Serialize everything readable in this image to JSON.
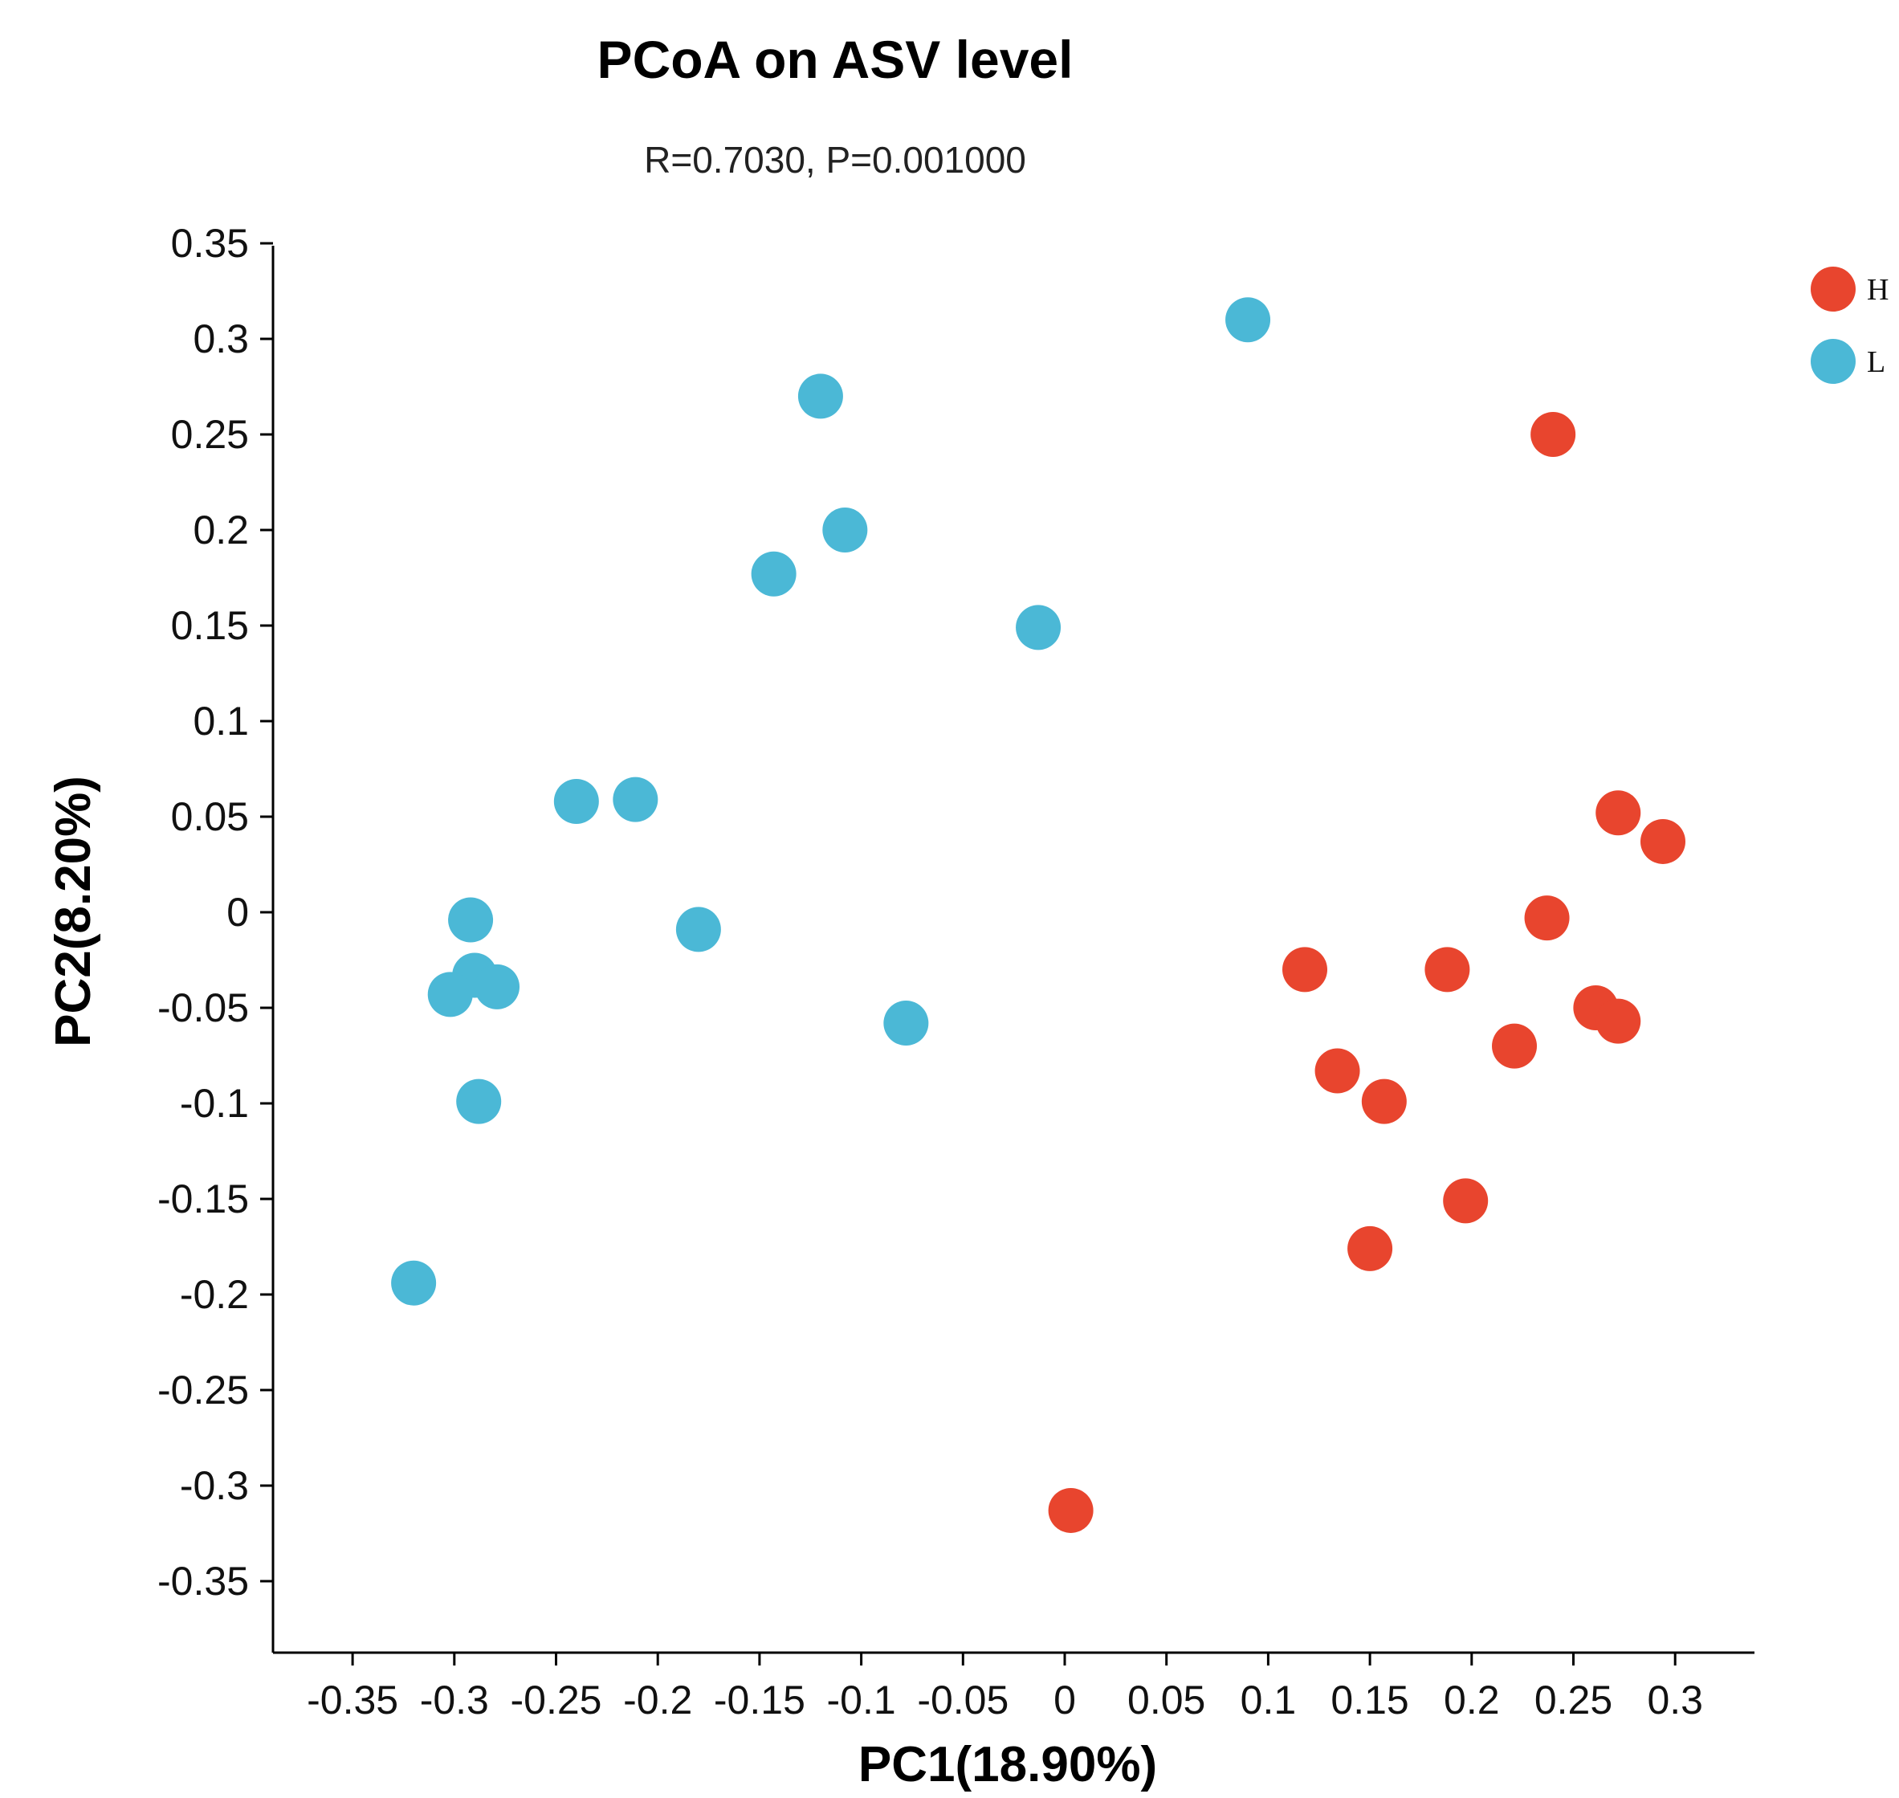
{
  "chart_data": {
    "type": "scatter",
    "title": "PCoA on ASV level",
    "subtitle": "R=0.7030, P=0.001000",
    "xlabel": "PC1(18.90%)",
    "ylabel": "PC2(8.20%)",
    "xlim": [
      -0.385,
      0.335
    ],
    "ylim": [
      -0.385,
      0.35
    ],
    "xticks": [
      -0.35,
      -0.3,
      -0.25,
      -0.2,
      -0.15,
      -0.1,
      -0.05,
      0,
      0.05,
      0.1,
      0.15,
      0.2,
      0.25,
      0.3
    ],
    "xtick_labels": [
      "-0.35",
      "-0.3",
      "-0.25",
      "-0.2",
      "-0.15",
      "-0.1",
      "-0.05",
      "0",
      "0.05",
      "0.1",
      "0.15",
      "0.2",
      "0.25",
      "0.3"
    ],
    "yticks": [
      0.35,
      0.3,
      0.25,
      0.2,
      0.15,
      0.1,
      0.05,
      0,
      -0.05,
      -0.1,
      -0.15,
      -0.2,
      -0.25,
      -0.3,
      -0.35
    ],
    "ytick_labels": [
      "0.35",
      "0.3",
      "0.25",
      "0.2",
      "0.15",
      "0.1",
      "0.05",
      "0",
      "-0.05",
      "-0.1",
      "-0.15",
      "-0.2",
      "-0.25",
      "-0.3",
      "-0.35"
    ],
    "legend_position": "top-right",
    "series": [
      {
        "name": "H",
        "color": "#e8452e",
        "points": [
          [
            0.24,
            0.25
          ],
          [
            0.272,
            0.052
          ],
          [
            0.294,
            0.037
          ],
          [
            0.237,
            -0.003
          ],
          [
            0.118,
            -0.03
          ],
          [
            0.188,
            -0.03
          ],
          [
            0.261,
            -0.05
          ],
          [
            0.272,
            -0.057
          ],
          [
            0.221,
            -0.07
          ],
          [
            0.134,
            -0.083
          ],
          [
            0.157,
            -0.099
          ],
          [
            0.197,
            -0.151
          ],
          [
            0.15,
            -0.176
          ],
          [
            0.003,
            -0.313
          ]
        ]
      },
      {
        "name": "L",
        "color": "#4bb8d6",
        "points": [
          [
            0.09,
            0.31
          ],
          [
            -0.12,
            0.27
          ],
          [
            -0.108,
            0.2
          ],
          [
            -0.143,
            0.177
          ],
          [
            -0.013,
            0.149
          ],
          [
            -0.24,
            0.058
          ],
          [
            -0.211,
            0.059
          ],
          [
            -0.18,
            -0.009
          ],
          [
            -0.292,
            -0.004
          ],
          [
            -0.29,
            -0.033
          ],
          [
            -0.302,
            -0.043
          ],
          [
            -0.279,
            -0.039
          ],
          [
            -0.078,
            -0.058
          ],
          [
            -0.288,
            -0.099
          ],
          [
            -0.32,
            -0.194
          ]
        ]
      }
    ]
  }
}
